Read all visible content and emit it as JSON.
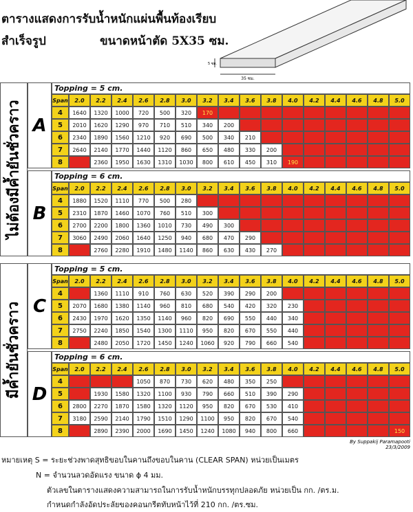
{
  "title": {
    "line1": "ตารางแสดงการรับน้ำหนักแผ่นพื้นท้องเรียบ",
    "line2": "สำเร็จรูป",
    "section": "ขนาดหน้าตัด 5X35 ซม."
  },
  "diagram": {
    "height_label": "5 ซม.",
    "width_label": "35 ซม."
  },
  "span_label": "Span",
  "spans": [
    "2.0",
    "2.2",
    "2.4",
    "2.6",
    "2.8",
    "3.0",
    "3.2",
    "3.4",
    "3.6",
    "3.8",
    "4.0",
    "4.2",
    "4.4",
    "4.6",
    "4.8",
    "5.0"
  ],
  "n_values": [
    4,
    5,
    6,
    7,
    8
  ],
  "groups": [
    {
      "label": "ไม่ต้องมีค้ำยันชั่วคราว",
      "blocks": [
        {
          "letter": "A",
          "topping": "Topping = 5 cm.",
          "rows": [
            [
              1640,
              1320,
              1000,
              720,
              500,
              320,
              170,
              null,
              null,
              null,
              null,
              null,
              null,
              null,
              null,
              null
            ],
            [
              2010,
              1620,
              1290,
              970,
              710,
              510,
              340,
              200,
              null,
              null,
              null,
              null,
              null,
              null,
              null,
              null
            ],
            [
              2340,
              1890,
              1560,
              1210,
              920,
              690,
              500,
              340,
              210,
              null,
              null,
              null,
              null,
              null,
              null,
              null
            ],
            [
              2640,
              2140,
              1770,
              1440,
              1120,
              860,
              650,
              480,
              330,
              200,
              null,
              null,
              null,
              null,
              null,
              null
            ],
            [
              null,
              2360,
              1950,
              1630,
              1310,
              1030,
              800,
              610,
              450,
              310,
              190,
              null,
              null,
              null,
              null,
              null
            ]
          ]
        },
        {
          "letter": "B",
          "topping": "Topping = 6 cm.",
          "rows": [
            [
              1880,
              1520,
              1110,
              770,
              500,
              280,
              null,
              null,
              null,
              null,
              null,
              null,
              null,
              null,
              null,
              null
            ],
            [
              2310,
              1870,
              1460,
              1070,
              760,
              510,
              300,
              null,
              null,
              null,
              null,
              null,
              null,
              null,
              null,
              null
            ],
            [
              2700,
              2200,
              1800,
              1360,
              1010,
              730,
              490,
              300,
              null,
              null,
              null,
              null,
              null,
              null,
              null,
              null
            ],
            [
              3060,
              2490,
              2060,
              1640,
              1250,
              940,
              680,
              470,
              290,
              null,
              null,
              null,
              null,
              null,
              null,
              null
            ],
            [
              null,
              2760,
              2280,
              1910,
              1480,
              1140,
              860,
              630,
              430,
              270,
              null,
              null,
              null,
              null,
              null,
              null
            ]
          ]
        }
      ]
    },
    {
      "label": "มีค้ำยันชั่วคราว",
      "blocks": [
        {
          "letter": "C",
          "topping": "Topping = 5 cm.",
          "rows": [
            [
              null,
              1360,
              1110,
              910,
              760,
              630,
              520,
              390,
              290,
              200,
              null,
              null,
              null,
              null,
              null,
              null
            ],
            [
              2070,
              1680,
              1380,
              1140,
              960,
              810,
              680,
              540,
              420,
              320,
              230,
              null,
              null,
              null,
              null,
              null
            ],
            [
              2430,
              1970,
              1620,
              1350,
              1140,
              960,
              820,
              690,
              550,
              440,
              340,
              null,
              null,
              null,
              null,
              null
            ],
            [
              2750,
              2240,
              1850,
              1540,
              1300,
              1110,
              950,
              820,
              670,
              550,
              440,
              null,
              null,
              null,
              null,
              null
            ],
            [
              null,
              2480,
              2050,
              1720,
              1450,
              1240,
              1060,
              920,
              790,
              660,
              540,
              null,
              null,
              null,
              null,
              null
            ]
          ]
        },
        {
          "letter": "D",
          "topping": "Topping = 6 cm.",
          "rows": [
            [
              null,
              null,
              null,
              1050,
              870,
              730,
              620,
              480,
              350,
              250,
              null,
              null,
              null,
              null,
              null,
              null
            ],
            [
              null,
              1930,
              1580,
              1320,
              1100,
              930,
              790,
              660,
              510,
              390,
              290,
              null,
              null,
              null,
              null,
              null
            ],
            [
              2800,
              2270,
              1870,
              1580,
              1320,
              1120,
              950,
              820,
              670,
              530,
              410,
              null,
              null,
              null,
              null,
              null
            ],
            [
              3180,
              2590,
              2140,
              1790,
              1510,
              1290,
              1100,
              950,
              820,
              670,
              540,
              null,
              null,
              null,
              null,
              null
            ],
            [
              null,
              2890,
              2390,
              2000,
              1690,
              1450,
              1240,
              1080,
              940,
              800,
              660,
              null,
              null,
              null,
              null,
              150
            ]
          ]
        }
      ]
    }
  ],
  "credit": {
    "author": "By Suppakij Paramapooti",
    "date": "23/3/2009"
  },
  "notes": [
    "หมายเหตุ S = ระยะช่วงพาดสุทธิขอบในคานถึงขอบในคาน (CLEAR SPAN) หน่วยเป็นเมตร",
    "N = จำนวนลวดอัดแรง ขนาด ϕ 4 มม.",
    "ตัวเลขในตารางแสดงความสามารถในการรับน้ำหนักบรรทุกปลอดภัย หน่วยเป็น กก. /ตร.ม.",
    "กำหนดกำลังอัดประลัยของคอนกรีตทับหน้าไว้ที่ 210 กก. /ตร.ซม."
  ]
}
